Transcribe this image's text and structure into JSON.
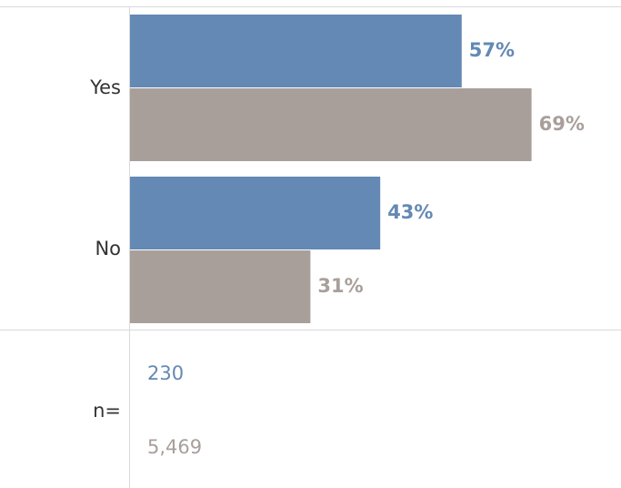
{
  "chart_data": {
    "type": "bar",
    "orientation": "horizontal",
    "categories": [
      "Yes",
      "No"
    ],
    "series": [
      {
        "color": "#6389b4",
        "values": [
          57,
          43
        ],
        "value_labels": [
          "57%",
          "43%"
        ]
      },
      {
        "color": "#a89f9b",
        "values": [
          69,
          31
        ],
        "value_labels": [
          "69%",
          "31%"
        ]
      }
    ],
    "xlim": [
      0,
      100
    ],
    "grid": false,
    "sample_sizes": {
      "label": "n=",
      "values": [
        "230",
        "5,469"
      ]
    }
  },
  "colors": {
    "axis_line": "#d9d9d9",
    "category_text": "#333333"
  }
}
